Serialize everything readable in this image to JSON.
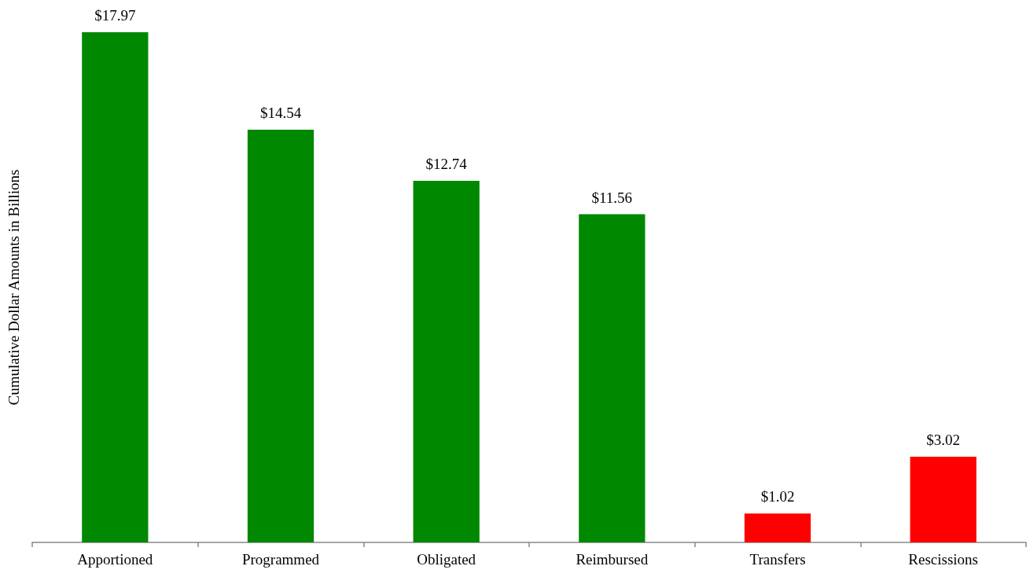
{
  "chart_data": {
    "type": "bar",
    "ylabel": "Cumulative Dollar Amounts in Billions",
    "categories": [
      "Apportioned",
      "Programmed",
      "Obligated",
      "Reimbursed",
      "Transfers",
      "Rescissions"
    ],
    "values": [
      17.97,
      14.54,
      12.74,
      11.56,
      1.02,
      3.02
    ],
    "value_labels": [
      "$17.97",
      "$14.54",
      "$12.74",
      "$11.56",
      "$1.02",
      "$3.02"
    ],
    "colors": [
      "#008800",
      "#008800",
      "#008800",
      "#008800",
      "#ff0000",
      "#ff0000"
    ]
  }
}
